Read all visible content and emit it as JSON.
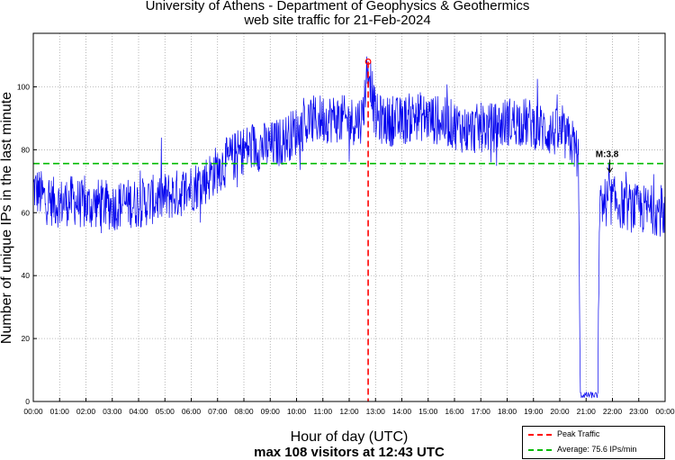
{
  "chart_data": {
    "type": "line",
    "title": "University of Athens - Department of Geophysics & Geothermics",
    "subtitle": "web site traffic for 21-Feb-2024",
    "xlabel": "Hour of day (UTC)",
    "ylabel": "Number of unique IPs in the last minute",
    "footer": "max 108 visitors at 12:43 UTC",
    "x_ticks": [
      "00:00",
      "01:00",
      "02:00",
      "03:00",
      "04:00",
      "05:00",
      "06:00",
      "07:00",
      "08:00",
      "09:00",
      "10:00",
      "11:00",
      "12:00",
      "13:00",
      "14:00",
      "15:00",
      "16:00",
      "17:00",
      "18:00",
      "19:00",
      "20:00",
      "21:00",
      "22:00",
      "23:00",
      "00:00"
    ],
    "y_ticks": [
      0,
      20,
      40,
      60,
      80,
      100
    ],
    "xlim": [
      0,
      24
    ],
    "ylim": [
      0,
      117
    ],
    "grid": true,
    "series": [
      {
        "color": "#0000ee",
        "x_hours": [
          0,
          0.5,
          1,
          1.5,
          2,
          2.5,
          3,
          3.5,
          4,
          4.5,
          5,
          5.5,
          6,
          6.5,
          7,
          7.5,
          8,
          8.5,
          9,
          9.5,
          10,
          10.5,
          11,
          11.5,
          12,
          12.5,
          12.72,
          13,
          13.5,
          14,
          14.5,
          15,
          15.5,
          16,
          16.5,
          17,
          17.5,
          18,
          18.5,
          19,
          19.5,
          20,
          20.5,
          20.7,
          20.78,
          21,
          21.3,
          21.45,
          21.5,
          21.6,
          22,
          22.5,
          23,
          23.5,
          24
        ],
        "values": [
          68,
          64,
          63,
          64,
          62,
          63,
          62,
          63,
          63,
          64,
          65,
          66,
          68,
          70,
          74,
          77,
          80,
          81,
          81,
          83,
          86,
          89,
          90,
          90,
          89,
          90,
          108,
          90,
          89,
          89,
          91,
          90,
          89,
          88,
          86,
          87,
          87,
          89,
          89,
          88,
          86,
          85,
          82,
          78,
          2,
          2,
          2,
          2,
          60,
          63,
          64,
          62,
          61,
          61,
          60
        ]
      }
    ],
    "peak": {
      "label": "Peak Traffic",
      "x_hours": 12.72,
      "value": 108,
      "color": "#ff0000"
    },
    "average": {
      "label": "Average: 75.6 IPs/min",
      "value": 75.6,
      "color": "#00bb00"
    },
    "marker": {
      "label": "M:3.8",
      "x_hours": 21.9,
      "value": 76
    },
    "legend_position": "bottom-right"
  }
}
